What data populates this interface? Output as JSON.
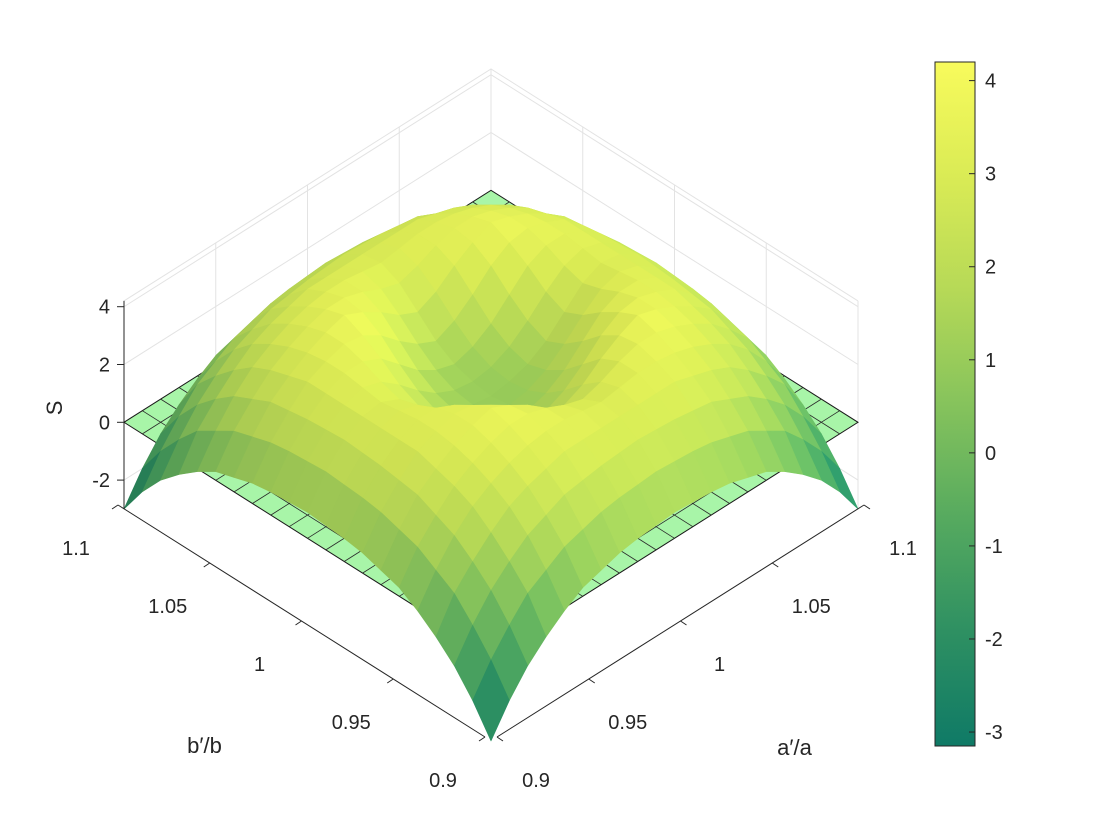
{
  "chart_data": {
    "type": "surface",
    "title": "",
    "xlabel": "a′/a",
    "ylabel": "b′/b",
    "zlabel": "S",
    "x_range": [
      0.9,
      1.1
    ],
    "y_range": [
      0.9,
      1.1
    ],
    "z_range": [
      -3,
      4.2
    ],
    "x_ticks": [
      0.9,
      0.95,
      1,
      1.05,
      1.1
    ],
    "y_ticks": [
      0.9,
      0.95,
      1,
      1.05,
      1.1
    ],
    "z_ticks": [
      -2,
      0,
      2,
      4
    ],
    "x_tick_labels": [
      "0.9",
      "0.95",
      "1",
      "1.05",
      "1.1"
    ],
    "y_tick_labels": [
      "0.9",
      "0.95",
      "1",
      "1.05",
      "1.1"
    ],
    "z_tick_labels": [
      "-2",
      "0",
      "2",
      "4"
    ],
    "colorbar": {
      "range": [
        -3.15,
        4.2
      ],
      "ticks": [
        -3,
        -2,
        -1,
        0,
        1,
        2,
        3,
        4
      ],
      "tick_labels": [
        "-3",
        "-2",
        "-1",
        "0",
        "1",
        "2",
        "3",
        "4"
      ],
      "colormap": [
        "#0f7a66",
        "#2e9062",
        "#56aa5f",
        "#86c35c",
        "#b6d957",
        "#daeb55",
        "#f8fb5c"
      ]
    },
    "reference_plane": {
      "z": 0,
      "color": "#a8f5a8",
      "grid_lines": 10
    },
    "surface": {
      "description_values": "S(a′/a, b′/b) sampled on a 21×21 grid; z values in data units",
      "x": [
        0.9,
        0.91,
        0.92,
        0.93,
        0.94,
        0.95,
        0.96,
        0.97,
        0.98,
        0.99,
        1.0,
        1.01,
        1.02,
        1.03,
        1.04,
        1.05,
        1.06,
        1.07,
        1.08,
        1.09,
        1.1
      ],
      "y": [
        0.9,
        0.91,
        0.92,
        0.93,
        0.94,
        0.95,
        0.96,
        0.97,
        0.98,
        0.99,
        1.0,
        1.01,
        1.02,
        1.03,
        1.04,
        1.05,
        1.06,
        1.07,
        1.08,
        1.09,
        1.1
      ],
      "z": [
        [
          -3.0,
          -2.0,
          -1.2,
          -0.6,
          -0.1,
          0.3,
          0.5,
          0.7,
          0.8,
          0.85,
          0.9,
          0.85,
          0.8,
          0.7,
          0.5,
          0.3,
          -0.1,
          -0.6,
          -1.2,
          -2.0,
          -3.0
        ],
        [
          -2.0,
          -1.0,
          -0.2,
          0.5,
          0.9,
          1.3,
          1.5,
          1.7,
          1.8,
          1.85,
          1.9,
          1.85,
          1.8,
          1.7,
          1.5,
          1.3,
          0.9,
          0.5,
          -0.2,
          -1.0,
          -2.0
        ],
        [
          -1.2,
          -0.2,
          0.6,
          1.2,
          1.7,
          2.0,
          2.3,
          2.4,
          2.5,
          2.55,
          2.6,
          2.55,
          2.5,
          2.4,
          2.3,
          2.0,
          1.7,
          1.2,
          0.6,
          -0.2,
          -1.2
        ],
        [
          -0.6,
          0.5,
          1.2,
          1.8,
          2.3,
          2.6,
          2.8,
          3.0,
          3.0,
          3.0,
          3.0,
          3.0,
          3.0,
          3.0,
          2.8,
          2.6,
          2.3,
          1.8,
          1.2,
          0.5,
          -0.6
        ],
        [
          -0.1,
          0.9,
          1.7,
          2.3,
          2.7,
          3.0,
          3.2,
          3.3,
          3.3,
          3.2,
          3.1,
          3.2,
          3.3,
          3.3,
          3.2,
          3.0,
          2.7,
          2.3,
          1.7,
          0.9,
          -0.1
        ],
        [
          0.3,
          1.3,
          2.0,
          2.6,
          3.0,
          3.3,
          3.5,
          3.5,
          3.3,
          3.0,
          2.8,
          3.0,
          3.3,
          3.5,
          3.5,
          3.3,
          3.0,
          2.6,
          2.0,
          1.3,
          0.3
        ],
        [
          0.5,
          1.5,
          2.3,
          2.8,
          3.2,
          3.5,
          3.7,
          3.4,
          3.0,
          2.5,
          2.2,
          2.5,
          3.0,
          3.4,
          3.7,
          3.5,
          3.2,
          2.8,
          2.3,
          1.5,
          0.5
        ],
        [
          0.7,
          1.7,
          2.4,
          3.0,
          3.3,
          3.5,
          3.4,
          3.0,
          2.4,
          1.9,
          1.6,
          1.9,
          2.4,
          3.0,
          3.4,
          3.5,
          3.3,
          3.0,
          2.4,
          1.7,
          0.7
        ],
        [
          0.8,
          1.8,
          2.5,
          3.0,
          3.3,
          3.3,
          3.0,
          2.4,
          1.8,
          1.4,
          1.2,
          1.4,
          1.8,
          2.4,
          3.0,
          3.3,
          3.3,
          3.0,
          2.5,
          1.8,
          0.8
        ],
        [
          0.85,
          1.85,
          2.55,
          3.0,
          3.2,
          3.0,
          2.5,
          1.9,
          1.4,
          1.1,
          1.0,
          1.1,
          1.4,
          1.9,
          2.5,
          3.0,
          3.2,
          3.0,
          2.55,
          1.85,
          0.85
        ],
        [
          0.9,
          1.9,
          2.6,
          3.0,
          3.1,
          2.8,
          2.2,
          1.6,
          1.2,
          1.0,
          0.9,
          1.0,
          1.2,
          1.6,
          2.2,
          2.8,
          3.1,
          3.0,
          2.6,
          1.9,
          0.9
        ],
        [
          0.85,
          1.85,
          2.55,
          3.0,
          3.2,
          3.0,
          2.5,
          1.9,
          1.4,
          1.1,
          1.0,
          1.1,
          1.4,
          1.9,
          2.5,
          3.0,
          3.2,
          3.0,
          2.55,
          1.85,
          0.85
        ],
        [
          0.8,
          1.8,
          2.5,
          3.0,
          3.3,
          3.3,
          3.0,
          2.4,
          1.8,
          1.4,
          1.2,
          1.4,
          1.8,
          2.4,
          3.0,
          3.3,
          3.3,
          3.0,
          2.5,
          1.8,
          0.8
        ],
        [
          0.7,
          1.7,
          2.4,
          3.0,
          3.3,
          3.5,
          3.4,
          3.0,
          2.4,
          1.9,
          1.6,
          1.9,
          2.4,
          3.0,
          3.4,
          3.5,
          3.3,
          3.0,
          2.4,
          1.7,
          0.7
        ],
        [
          0.5,
          1.5,
          2.3,
          2.8,
          3.2,
          3.5,
          3.7,
          3.4,
          3.0,
          2.5,
          2.2,
          2.5,
          3.0,
          3.4,
          3.7,
          3.5,
          3.2,
          2.8,
          2.3,
          1.5,
          0.5
        ],
        [
          0.3,
          1.3,
          2.0,
          2.6,
          3.0,
          3.3,
          3.5,
          3.5,
          3.3,
          3.0,
          2.8,
          3.0,
          3.3,
          3.5,
          3.5,
          3.3,
          3.0,
          2.6,
          2.0,
          1.3,
          0.3
        ],
        [
          -0.1,
          0.9,
          1.7,
          2.3,
          2.7,
          3.0,
          3.2,
          3.3,
          3.3,
          3.2,
          3.1,
          3.2,
          3.3,
          3.3,
          3.2,
          3.0,
          2.7,
          2.3,
          1.7,
          0.9,
          -0.1
        ],
        [
          -0.6,
          0.5,
          1.2,
          1.8,
          2.3,
          2.6,
          2.8,
          3.0,
          3.0,
          3.0,
          3.0,
          3.0,
          3.0,
          3.0,
          2.8,
          2.6,
          2.3,
          1.8,
          1.2,
          0.5,
          -0.6
        ],
        [
          -1.2,
          -0.2,
          0.6,
          1.2,
          1.7,
          2.0,
          2.3,
          2.4,
          2.5,
          2.55,
          2.6,
          2.55,
          2.5,
          2.4,
          2.3,
          2.0,
          1.7,
          1.2,
          0.6,
          -0.2,
          -1.2
        ],
        [
          -2.0,
          -1.0,
          -0.2,
          0.5,
          0.9,
          1.3,
          1.5,
          1.7,
          1.8,
          1.85,
          1.9,
          1.85,
          1.8,
          1.7,
          1.5,
          1.3,
          0.9,
          0.5,
          -0.2,
          -1.0,
          -2.0
        ],
        [
          -3.0,
          -2.0,
          -1.2,
          -0.6,
          -0.1,
          0.3,
          0.5,
          0.7,
          0.8,
          0.85,
          0.9,
          0.85,
          0.8,
          0.7,
          0.5,
          0.3,
          -0.1,
          -0.6,
          -1.2,
          -2.0,
          -3.0
        ]
      ]
    },
    "grid": true,
    "legend": "none"
  }
}
